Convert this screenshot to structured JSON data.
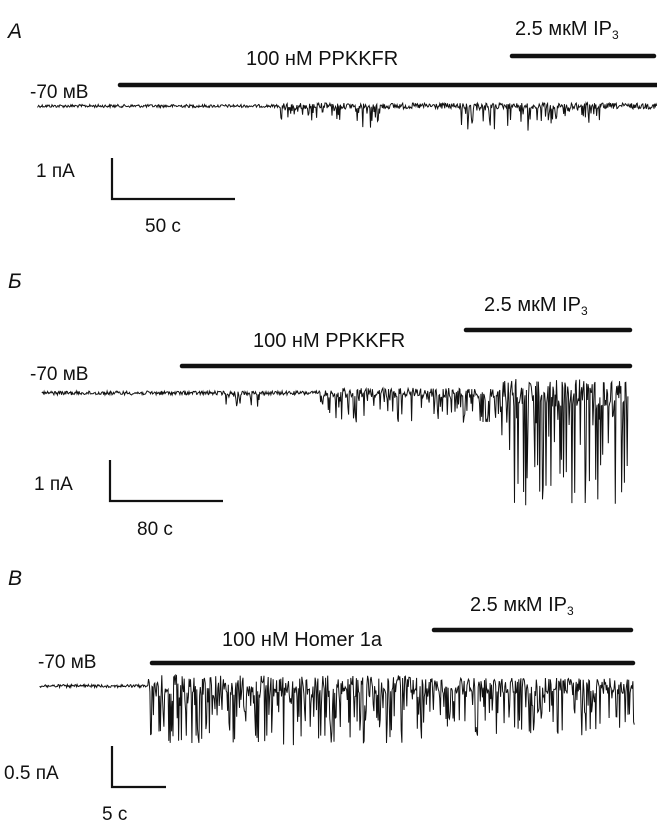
{
  "panels": [
    {
      "label": "А",
      "holding": "-70 мВ",
      "drug1": "100 нМ PPKKFR",
      "drug2_main": "2.5 мкМ IP",
      "drug2_sub": "3",
      "scale_y": "1 пА",
      "scale_x": "50 с"
    },
    {
      "label": "Б",
      "holding": "-70 мВ",
      "drug1": "100 нМ PPKKFR",
      "drug2_main": "2.5 мкМ IP",
      "drug2_sub": "3",
      "scale_y": "1 пА",
      "scale_x": "80 с"
    },
    {
      "label": "В",
      "holding": "-70 мВ",
      "drug1": "100 нМ Homer 1a",
      "drug2_main": "2.5 мкМ IP",
      "drug2_sub": "3",
      "scale_y": "0.5 пА",
      "scale_x": "5 с"
    }
  ]
}
